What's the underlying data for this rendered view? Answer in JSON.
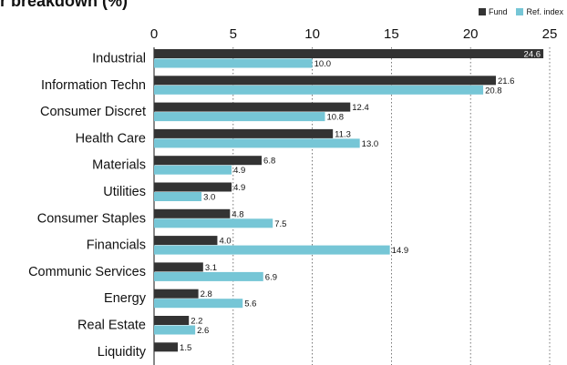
{
  "title": "r breakdown (%)",
  "legend": [
    {
      "name": "Fund",
      "color": "#333333"
    },
    {
      "name": "Ref. index",
      "color": "#76c6d6"
    }
  ],
  "chart_data": {
    "type": "bar",
    "orientation": "horizontal",
    "title": "r breakdown (%)",
    "xlim": [
      0,
      25
    ],
    "xticks": [
      0,
      5,
      10,
      15,
      20,
      25
    ],
    "grid": "vertical-dotted",
    "legend_position": "top-right",
    "categories": [
      "Industrial",
      "Information Techn",
      "Consumer Discret",
      "Health Care",
      "Materials",
      "Utilities",
      "Consumer Staples",
      "Financials",
      "Communic Services",
      "Energy",
      "Real Estate",
      "Liquidity"
    ],
    "series": [
      {
        "name": "Fund",
        "color": "#333333",
        "values": [
          24.6,
          21.6,
          12.4,
          11.3,
          6.8,
          4.9,
          4.8,
          4.0,
          3.1,
          2.8,
          2.2,
          1.5
        ]
      },
      {
        "name": "Ref. index",
        "color": "#76c6d6",
        "values": [
          10.0,
          20.8,
          10.8,
          13.0,
          4.9,
          3.0,
          7.5,
          14.9,
          6.9,
          5.6,
          2.6,
          null
        ]
      }
    ]
  }
}
